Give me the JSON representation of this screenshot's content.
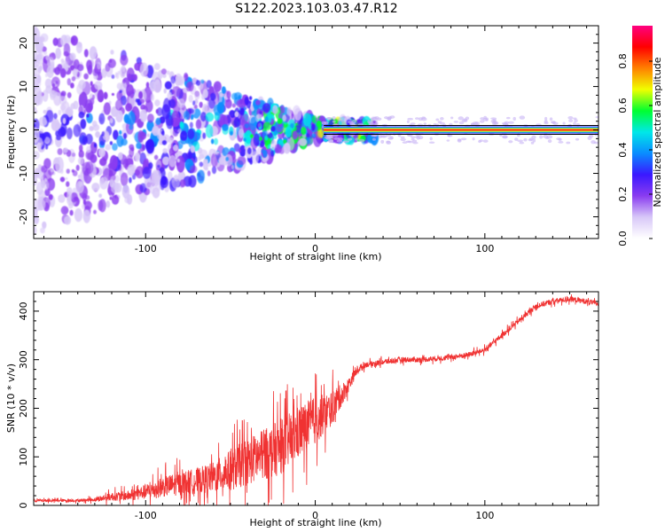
{
  "title": "S122.2023.103.03.47.R12",
  "chart_data": [
    {
      "type": "heatmap",
      "panel": "top",
      "xlabel": "Height of straight line (km)",
      "ylabel": "Frequency (Hz)",
      "xlim": [
        -166,
        167
      ],
      "ylim": [
        -25,
        24
      ],
      "xticks": [
        -100,
        0,
        100
      ],
      "yticks": [
        -20,
        -10,
        0,
        10,
        20
      ],
      "colorbar": {
        "label": "Normalized spectral amplitude",
        "range": [
          0.0,
          0.96
        ],
        "ticks": [
          0.0,
          0.2,
          0.4,
          0.6,
          0.8
        ],
        "tick_labels": [
          "0.0",
          "0.2",
          "0.4",
          "0.6",
          "0.8"
        ],
        "stops": [
          "#ffffff",
          "#d8c8f8",
          "#8a3cf0",
          "#3a18ff",
          "#0a8cff",
          "#00e8e8",
          "#00ff30",
          "#f0ff00",
          "#ff8000",
          "#ff0000",
          "#ff0080"
        ]
      },
      "description_series": [
        {
          "name": "carrier line",
          "x": [
            5,
            167
          ],
          "y": 0,
          "amplitude": 0.95
        },
        {
          "name": "scatter region",
          "x_range": [
            -166,
            5
          ],
          "y_spread_at_left": 24,
          "y_spread_at_zero": 2
        }
      ]
    },
    {
      "type": "line",
      "panel": "bottom",
      "xlabel": "Height of straight line (km)",
      "ylabel": "SNR (10 * v/v)",
      "xlim": [
        -166,
        167
      ],
      "ylim": [
        0,
        440
      ],
      "xticks": [
        -100,
        0,
        100
      ],
      "yticks": [
        0,
        100,
        200,
        300,
        400
      ],
      "color": "#f03232",
      "series": [
        {
          "name": "SNR",
          "x": [
            -166,
            -140,
            -130,
            -120,
            -110,
            -100,
            -90,
            -80,
            -70,
            -60,
            -50,
            -40,
            -30,
            -20,
            -10,
            0,
            10,
            20,
            25,
            30,
            40,
            50,
            60,
            70,
            80,
            90,
            100,
            110,
            120,
            130,
            140,
            150,
            160,
            167
          ],
          "y": [
            10,
            10,
            12,
            18,
            20,
            28,
            38,
            45,
            50,
            58,
            72,
            90,
            105,
            120,
            150,
            175,
            200,
            250,
            280,
            290,
            295,
            300,
            300,
            302,
            305,
            310,
            320,
            350,
            380,
            410,
            420,
            425,
            420,
            415
          ],
          "noise": [
            4,
            4,
            6,
            12,
            15,
            22,
            30,
            35,
            38,
            45,
            60,
            70,
            75,
            80,
            80,
            70,
            50,
            20,
            12,
            8,
            8,
            8,
            8,
            8,
            8,
            8,
            8,
            8,
            8,
            8,
            8,
            8,
            8,
            8
          ]
        }
      ]
    }
  ]
}
